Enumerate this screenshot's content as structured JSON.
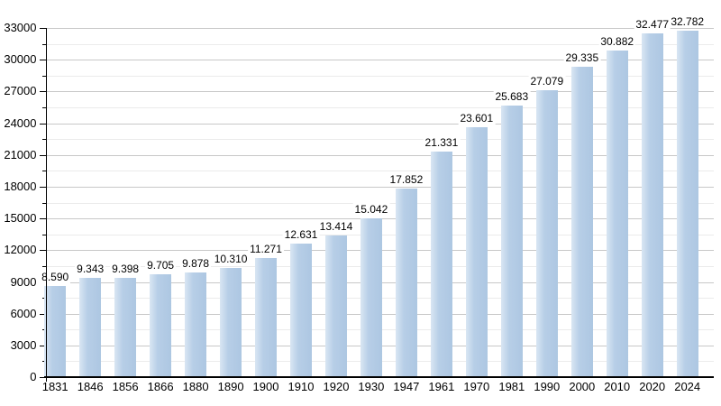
{
  "chart_data": {
    "type": "bar",
    "title": "",
    "xlabel": "",
    "ylabel": "",
    "categories": [
      "1831",
      "1846",
      "1856",
      "1866",
      "1880",
      "1890",
      "1900",
      "1910",
      "1920",
      "1930",
      "1947",
      "1961",
      "1970",
      "1981",
      "1990",
      "2000",
      "2010",
      "2020",
      "2024"
    ],
    "values": [
      8590,
      9343,
      9398,
      9705,
      9878,
      10310,
      11271,
      12631,
      13414,
      15042,
      17852,
      21331,
      23601,
      25683,
      27079,
      29335,
      30882,
      32477,
      32782
    ],
    "value_labels": [
      "8.590",
      "9.343",
      "9.398",
      "9.705",
      "9.878",
      "10.310",
      "11.271",
      "12.631",
      "13.414",
      "15.042",
      "17.852",
      "21.331",
      "23.601",
      "25.683",
      "27.079",
      "29.335",
      "30.882",
      "32.477",
      "32.782"
    ],
    "ylim": [
      0,
      33000
    ],
    "y_major_step": 3000,
    "y_minor_step": 1500,
    "y_tick_labels": [
      "0",
      "3000",
      "6000",
      "9000",
      "12000",
      "15000",
      "18000",
      "21000",
      "24000",
      "27000",
      "30000",
      "33000"
    ],
    "grid": true,
    "legend": "none",
    "colors": {
      "bar": "#adc7e2",
      "bar_highlight": "#d9e6f3",
      "grid_major": "#c8c8c8",
      "grid_minor": "#ebebeb",
      "axis": "#000000",
      "text": "#000000",
      "background": "#ffffff"
    }
  }
}
